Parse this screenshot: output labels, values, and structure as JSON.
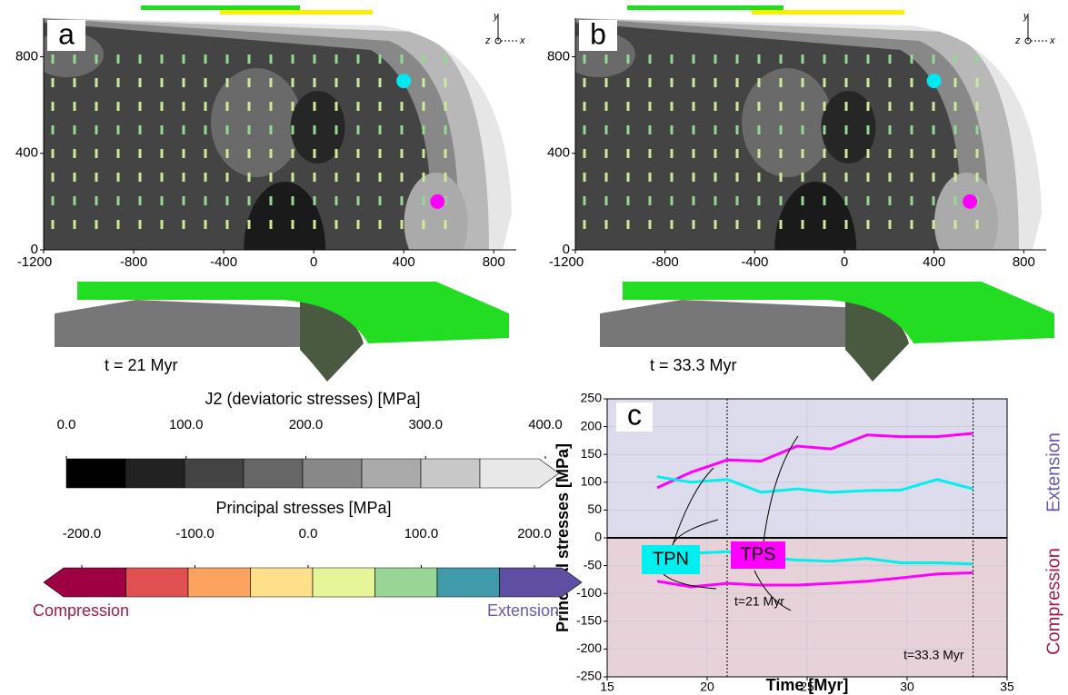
{
  "chart_data": [
    {
      "type": "contour",
      "label": "a",
      "caption": "t = 21 Myr",
      "orientation_labels": [
        "y",
        "z",
        "x"
      ],
      "xlim": [
        -1200,
        900
      ],
      "ylim": [
        0,
        960
      ],
      "xticks": [
        -1200,
        -800,
        -400,
        0,
        400,
        800
      ],
      "yticks": [
        0,
        400,
        800
      ],
      "points": [
        {
          "color": "#00e8f0",
          "x": 400,
          "y": 700
        },
        {
          "color": "#ff00ff",
          "x": 550,
          "y": 200
        }
      ]
    },
    {
      "type": "contour",
      "label": "b",
      "caption": "t = 33.3 Myr",
      "orientation_labels": [
        "y",
        "z",
        "x"
      ],
      "xlim": [
        -1200,
        900
      ],
      "ylim": [
        0,
        960
      ],
      "xticks": [
        -1200,
        -800,
        -400,
        0,
        400,
        800
      ],
      "yticks": [
        0,
        400,
        800
      ],
      "points": [
        {
          "color": "#00e8f0",
          "x": 400,
          "y": 700
        },
        {
          "color": "#ff00ff",
          "x": 560,
          "y": 200
        }
      ]
    },
    {
      "type": "line",
      "label": "c",
      "x_label": "Time [Myr]",
      "y_label": "Principal stresses [MPa]",
      "region_labels": [
        "Extension",
        "Compression"
      ],
      "annotations": [
        "TPN",
        "TPS"
      ],
      "x": [
        17.5,
        19.2,
        21,
        22.7,
        24.5,
        26.2,
        28,
        29.7,
        31.5,
        33.3
      ],
      "series": [
        {
          "color": "#ff00ff",
          "values": [
            90,
            118,
            140,
            138,
            165,
            160,
            185,
            182,
            182,
            188
          ]
        },
        {
          "color": "#00f0f0",
          "values": [
            110,
            100,
            105,
            82,
            88,
            82,
            85,
            86,
            105,
            88
          ]
        },
        {
          "color": "#00f0f0",
          "values": [
            -32,
            -28,
            -25,
            -35,
            -40,
            -42,
            -37,
            -45,
            -45,
            -47
          ]
        },
        {
          "color": "#ff00ff",
          "values": [
            -78,
            -88,
            -82,
            -85,
            -85,
            -82,
            -78,
            -72,
            -65,
            -63
          ]
        }
      ],
      "vlines": [
        {
          "x": 21,
          "label": "t=21 Myr"
        },
        {
          "x": 33.3,
          "label": "t=33.3 Myr"
        }
      ],
      "xlim": [
        15,
        35
      ],
      "ylim": [
        -250,
        250
      ],
      "xticks": [
        15,
        20,
        25,
        30,
        35
      ],
      "yticks": [
        -250,
        -200,
        -150,
        -100,
        -50,
        0,
        50,
        100,
        150,
        200,
        250
      ],
      "grid": true
    }
  ],
  "colorbars": [
    {
      "title": "J2 (deviatoric stresses) [MPa]",
      "lim": [
        0,
        400
      ],
      "ticks": [
        {
          "value": 0,
          "label": "0.0"
        },
        {
          "value": 100,
          "label": "100.0"
        },
        {
          "value": 200,
          "label": "200.0"
        },
        {
          "value": 300,
          "label": "300.0"
        },
        {
          "value": 400,
          "label": "400.0"
        }
      ],
      "colors": [
        "#000000",
        "#222222",
        "#444444",
        "#666666",
        "#888888",
        "#aaaaaa",
        "#c8c8c8",
        "#e8e8e8"
      ]
    },
    {
      "title": "Principal stresses [MPa]",
      "lim": [
        -200,
        200
      ],
      "ticks": [
        {
          "value": -200,
          "label": "-200.0"
        },
        {
          "value": -100,
          "label": "-100.0"
        },
        {
          "value": 0,
          "label": "0.0"
        },
        {
          "value": 100,
          "label": "100.0"
        },
        {
          "value": 200,
          "label": "200.0"
        }
      ],
      "colors": [
        "#9e0142",
        "#e05050",
        "#fca35d",
        "#fee08b",
        "#e6f598",
        "#99d594",
        "#3f9aaa",
        "#5e4fa2"
      ],
      "end_labels": [
        "Compression",
        "Extension"
      ]
    }
  ]
}
